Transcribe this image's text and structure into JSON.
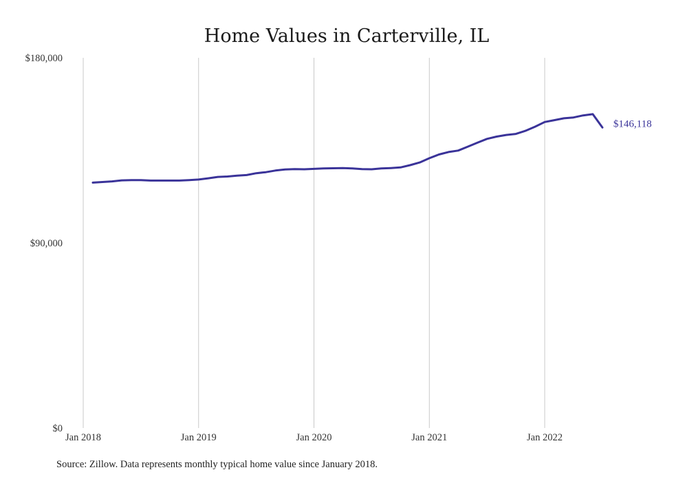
{
  "chart_data": {
    "type": "line",
    "title": "Home Values in Carterville, IL",
    "xlabel": "",
    "ylabel": "",
    "ylim": [
      0,
      180000
    ],
    "yticks": [
      0,
      90000,
      180000
    ],
    "ytick_labels": [
      "$0",
      "$90,000",
      "$180,000"
    ],
    "xtick_labels": [
      "Jan 2018",
      "Jan 2019",
      "Jan 2020",
      "Jan 2021",
      "Jan 2022"
    ],
    "grid": "vertical gridlines at each year",
    "series": [
      {
        "color": "#3a3399",
        "x": [
          "2018-02",
          "2018-03",
          "2018-04",
          "2018-05",
          "2018-06",
          "2018-07",
          "2018-08",
          "2018-09",
          "2018-10",
          "2018-11",
          "2018-12",
          "2019-01",
          "2019-02",
          "2019-03",
          "2019-04",
          "2019-05",
          "2019-06",
          "2019-07",
          "2019-08",
          "2019-09",
          "2019-10",
          "2019-11",
          "2019-12",
          "2020-01",
          "2020-02",
          "2020-03",
          "2020-04",
          "2020-05",
          "2020-06",
          "2020-07",
          "2020-08",
          "2020-09",
          "2020-10",
          "2020-11",
          "2020-12",
          "2021-01",
          "2021-02",
          "2021-03",
          "2021-04",
          "2021-05",
          "2021-06",
          "2021-07",
          "2021-08",
          "2021-09",
          "2021-10",
          "2021-11",
          "2021-12",
          "2022-01",
          "2022-02",
          "2022-03",
          "2022-04",
          "2022-05",
          "2022-06",
          "2022-07"
        ],
        "values": [
          119300,
          119600,
          119900,
          120400,
          120500,
          120500,
          120300,
          120300,
          120300,
          120300,
          120500,
          120800,
          121400,
          122100,
          122300,
          122700,
          123000,
          123900,
          124400,
          125200,
          125700,
          125900,
          125800,
          126000,
          126200,
          126300,
          126400,
          126200,
          125900,
          125800,
          126200,
          126400,
          126700,
          127800,
          129100,
          131200,
          133000,
          134200,
          134900,
          136800,
          138700,
          140600,
          141700,
          142500,
          143000,
          144500,
          146500,
          148800,
          149700,
          150600,
          151000,
          152000,
          152600,
          146118
        ],
        "end_label": "$146,118"
      }
    ]
  },
  "source_note": "Source: Zillow. Data represents monthly typical home value since January 2018."
}
